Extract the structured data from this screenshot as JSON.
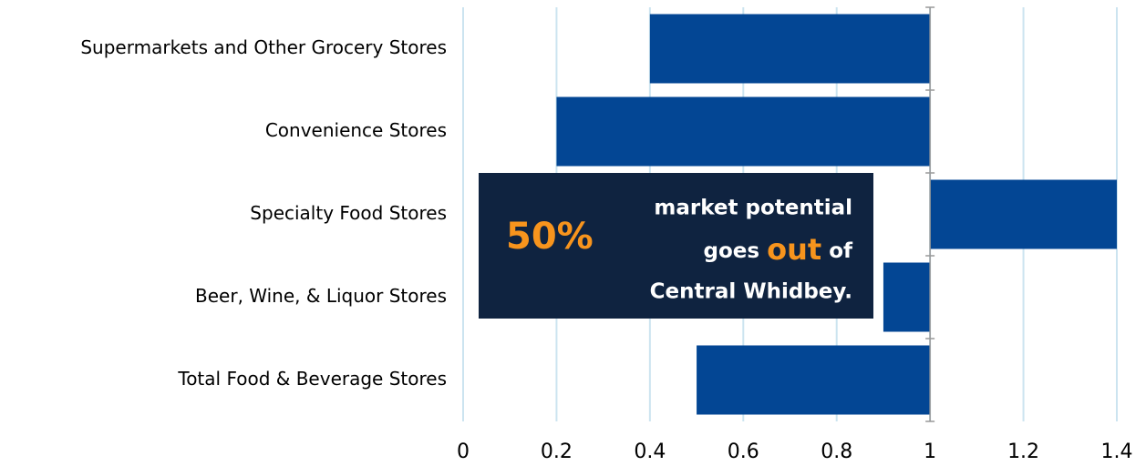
{
  "chart_data": {
    "type": "bar",
    "orientation": "horizontal",
    "categories": [
      "Supermarkets and Other Grocery Stores",
      "Convenience Stores",
      "Specialty Food Stores",
      "Beer, Wine, & Liquor Stores",
      "Total Food & Beverage Stores"
    ],
    "values": [
      0.4,
      0.2,
      1.4,
      0.9,
      0.5
    ],
    "color": "#034694",
    "xbase": 1,
    "xlim": [
      0,
      1.4
    ],
    "xticks": [
      0,
      0.2,
      0.4,
      0.6,
      0.8,
      1,
      1.2,
      1.4
    ],
    "grid": true,
    "annotation": {
      "highlight": "50%",
      "line1": "market potential",
      "line2_before": "goes",
      "line2_emphasis": "out",
      "line2_after": "of",
      "line3": "Central Whidbey."
    }
  }
}
